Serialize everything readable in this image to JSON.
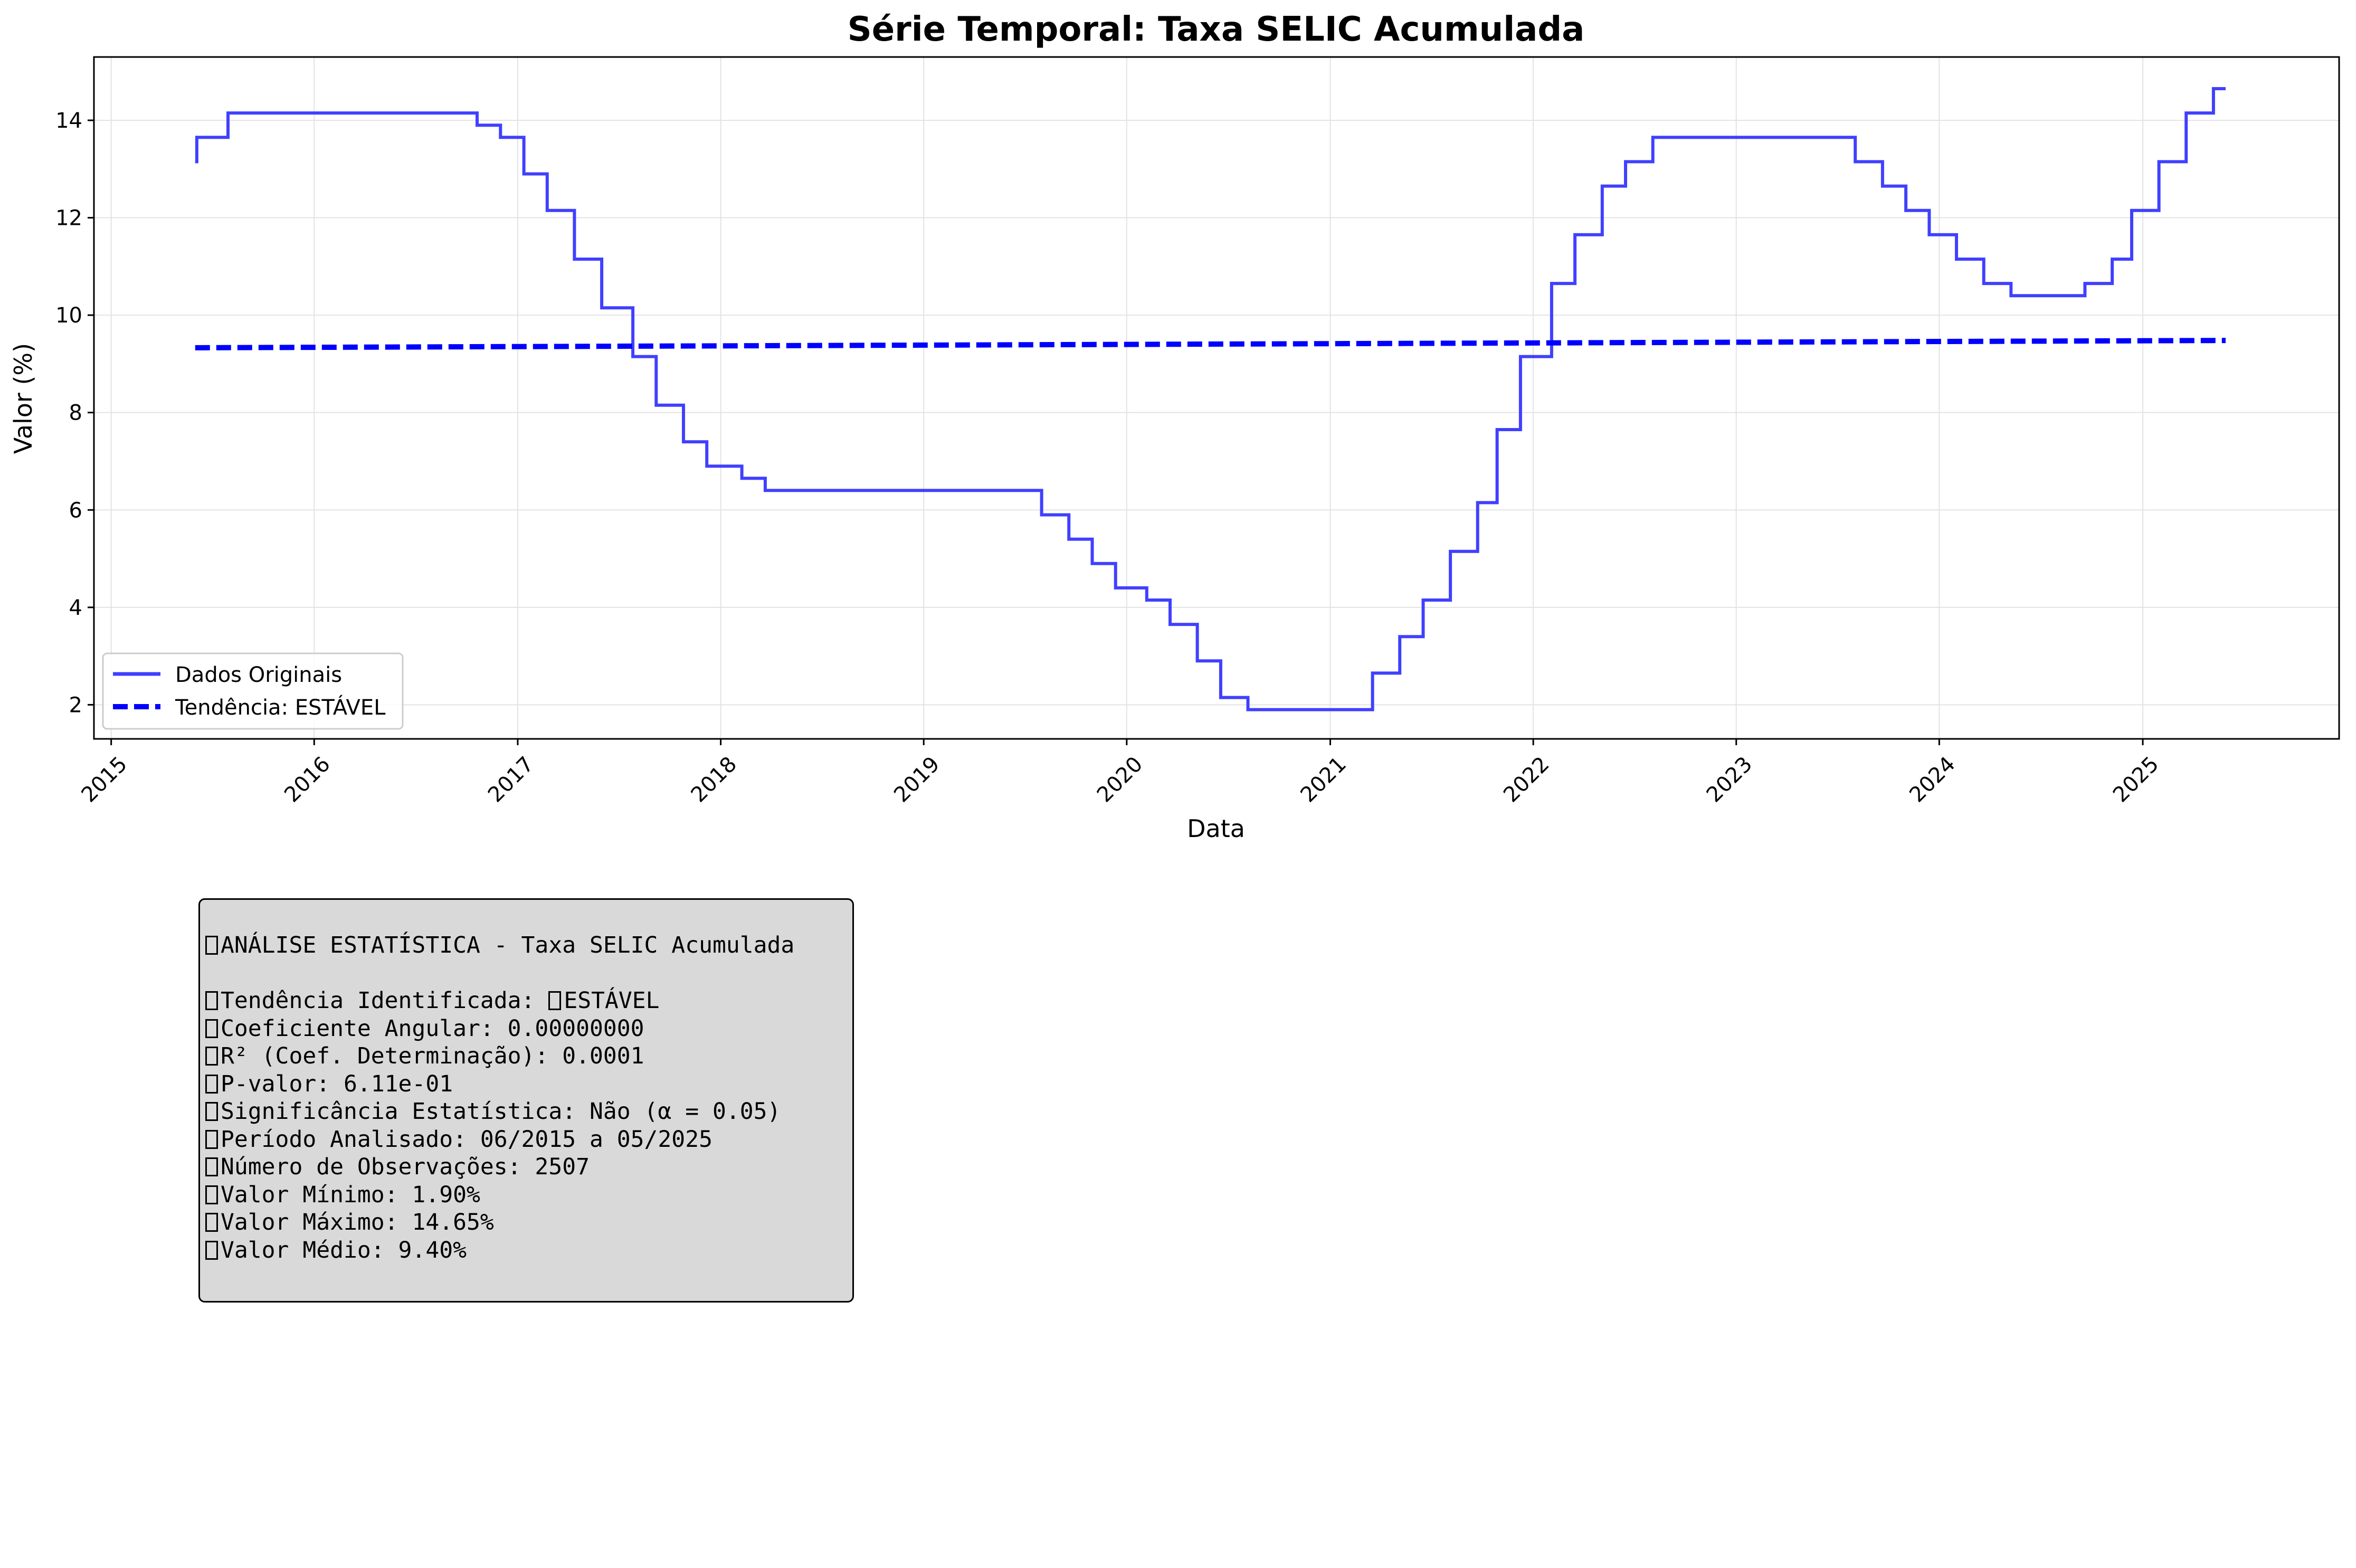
{
  "chart_data": {
    "type": "line",
    "title": "Série Temporal: Taxa SELIC Acumulada",
    "xlabel": "Data",
    "ylabel": "Valor (%)",
    "x_ticks": [
      "2015",
      "2016",
      "2017",
      "2018",
      "2019",
      "2020",
      "2021",
      "2022",
      "2023",
      "2024",
      "2025"
    ],
    "y_ticks": [
      "2",
      "4",
      "6",
      "8",
      "10",
      "12",
      "14"
    ],
    "xlim": [
      "2014-12-01",
      "2025-12-20"
    ],
    "ylim": [
      1.3,
      15.3
    ],
    "grid": true,
    "legend_position": "lower-left",
    "series": [
      {
        "name": "Dados Originais",
        "color": "#4040ff",
        "style": "step",
        "points": [
          [
            "2015-06-01",
            13.15
          ],
          [
            "2015-06-04",
            13.65
          ],
          [
            "2015-07-30",
            14.15
          ],
          [
            "2016-10-20",
            13.9
          ],
          [
            "2016-12-01",
            13.65
          ],
          [
            "2017-01-12",
            12.9
          ],
          [
            "2017-02-23",
            12.15
          ],
          [
            "2017-04-13",
            11.15
          ],
          [
            "2017-06-01",
            10.15
          ],
          [
            "2017-07-27",
            9.15
          ],
          [
            "2017-09-07",
            8.15
          ],
          [
            "2017-10-26",
            7.4
          ],
          [
            "2017-12-07",
            6.9
          ],
          [
            "2018-02-08",
            6.65
          ],
          [
            "2018-03-22",
            6.4
          ],
          [
            "2019-08-01",
            5.9
          ],
          [
            "2019-09-19",
            5.4
          ],
          [
            "2019-10-31",
            4.9
          ],
          [
            "2019-12-12",
            4.4
          ],
          [
            "2020-02-06",
            4.15
          ],
          [
            "2020-03-19",
            3.65
          ],
          [
            "2020-05-07",
            2.9
          ],
          [
            "2020-06-18",
            2.15
          ],
          [
            "2020-08-06",
            1.9
          ],
          [
            "2021-03-18",
            2.65
          ],
          [
            "2021-05-06",
            3.4
          ],
          [
            "2021-06-17",
            4.15
          ],
          [
            "2021-08-05",
            5.15
          ],
          [
            "2021-09-23",
            6.15
          ],
          [
            "2021-10-28",
            7.65
          ],
          [
            "2021-12-09",
            9.15
          ],
          [
            "2022-02-03",
            10.65
          ],
          [
            "2022-03-17",
            11.65
          ],
          [
            "2022-05-05",
            12.65
          ],
          [
            "2022-06-16",
            13.15
          ],
          [
            "2022-08-04",
            13.65
          ],
          [
            "2023-08-03",
            13.15
          ],
          [
            "2023-09-21",
            12.65
          ],
          [
            "2023-11-02",
            12.15
          ],
          [
            "2023-12-14",
            11.65
          ],
          [
            "2024-02-01",
            11.15
          ],
          [
            "2024-03-21",
            10.65
          ],
          [
            "2024-05-09",
            10.4
          ],
          [
            "2024-09-19",
            10.65
          ],
          [
            "2024-11-07",
            11.15
          ],
          [
            "2024-12-12",
            12.15
          ],
          [
            "2025-01-30",
            13.15
          ],
          [
            "2025-03-20",
            14.15
          ],
          [
            "2025-05-08",
            14.65
          ],
          [
            "2025-05-30",
            14.65
          ]
        ]
      },
      {
        "name": "Tendência: ESTÁVEL",
        "color": "#0000ff",
        "style": "dashed",
        "points": [
          [
            "2015-06-01",
            9.33
          ],
          [
            "2025-05-30",
            9.48
          ]
        ]
      }
    ]
  },
  "stats": {
    "title": "ANÁLISE ESTATÍSTICA - Taxa SELIC Acumulada",
    "lines": [
      {
        "prefix": "Tendência Identificada: ",
        "glyph_after": true,
        "value": "ESTÁVEL"
      },
      {
        "prefix": "Coeficiente Angular: 0.00000000"
      },
      {
        "prefix": "R² (Coef. Determinação): 0.0001"
      },
      {
        "prefix": "P-valor: 6.11e-01"
      },
      {
        "prefix": "Significância Estatística: Não (α = 0.05)"
      },
      {
        "prefix": "Período Analisado: 06/2015 a 05/2025"
      },
      {
        "prefix": "Número de Observações: 2507"
      },
      {
        "prefix": "Valor Mínimo: 1.90%"
      },
      {
        "prefix": "Valor Máximo: 14.65%"
      },
      {
        "prefix": "Valor Médio: 9.40%"
      }
    ]
  }
}
